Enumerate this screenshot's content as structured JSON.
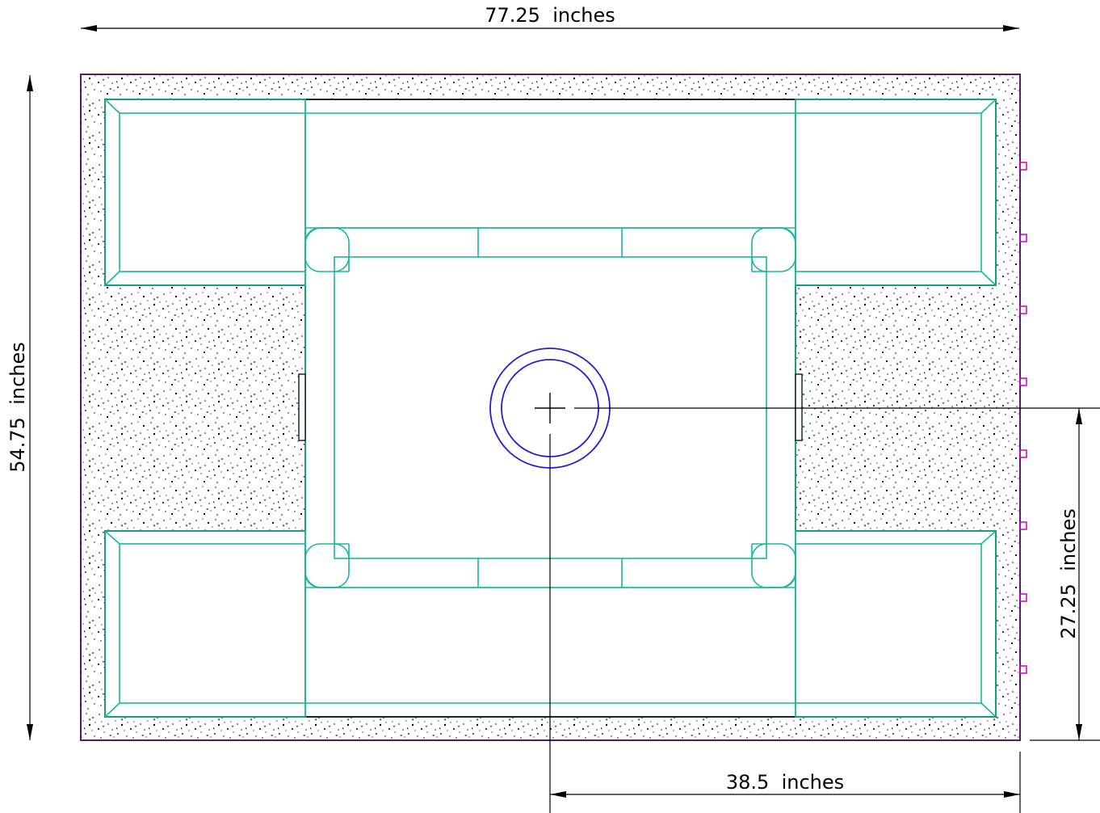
{
  "drawing": {
    "dimensions": {
      "width_label": "77.25  inches",
      "height_label": "54.75  inches",
      "center_height_label": "27.25  inches",
      "center_width_label": "38.5  inches"
    },
    "colors": {
      "concrete": "#000000",
      "form_outline": "#16b8a0",
      "center_circle": "#2a1ad1",
      "outer_border": "#5a1a6a",
      "markers": "#cc00cc",
      "dimension": "#000000"
    },
    "elements": {
      "slab": "concrete slab with stipple fill",
      "center_opening": "circular opening with crosshair",
      "form_panels": "four corner form panels",
      "edge_markers": "square markers along right edge"
    }
  }
}
